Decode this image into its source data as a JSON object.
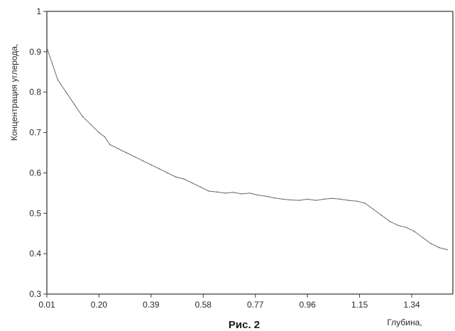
{
  "figure": {
    "caption": "Рис. 2"
  },
  "chart_data": {
    "type": "line",
    "title": "",
    "ylabel": "Концентрация углерода,",
    "xlabel": "Глубина,",
    "xlim": [
      0.01,
      1.49
    ],
    "ylim": [
      0.3,
      1.0
    ],
    "x_tick_labels": [
      "0.01",
      "0.20",
      "0.39",
      "0.58",
      "0.77",
      "0.96",
      "1.15",
      "1.34"
    ],
    "x_tick_values": [
      0.01,
      0.2,
      0.39,
      0.58,
      0.77,
      0.96,
      1.15,
      1.34
    ],
    "y_tick_labels": [
      "0.3",
      "0.4",
      "0.5",
      "0.6",
      "0.7",
      "0.8",
      "0.9",
      "1"
    ],
    "y_tick_values": [
      0.3,
      0.4,
      0.5,
      0.6,
      0.7,
      0.8,
      0.9,
      1.0
    ],
    "grid": false,
    "legend": false,
    "series": [
      {
        "color": "#6a6a6a",
        "x": [
          0.01,
          0.03,
          0.05,
          0.08,
          0.11,
          0.14,
          0.17,
          0.2,
          0.22,
          0.24,
          0.27,
          0.3,
          0.33,
          0.36,
          0.39,
          0.42,
          0.45,
          0.48,
          0.51,
          0.54,
          0.57,
          0.6,
          0.63,
          0.66,
          0.69,
          0.72,
          0.75,
          0.78,
          0.81,
          0.84,
          0.87,
          0.9,
          0.93,
          0.96,
          0.99,
          1.02,
          1.05,
          1.08,
          1.11,
          1.14,
          1.17,
          1.2,
          1.23,
          1.26,
          1.29,
          1.32,
          1.35,
          1.38,
          1.41,
          1.44,
          1.47
        ],
        "y": [
          0.91,
          0.87,
          0.83,
          0.8,
          0.77,
          0.74,
          0.72,
          0.7,
          0.69,
          0.67,
          0.66,
          0.65,
          0.64,
          0.63,
          0.62,
          0.61,
          0.6,
          0.59,
          0.585,
          0.575,
          0.565,
          0.555,
          0.553,
          0.55,
          0.552,
          0.548,
          0.55,
          0.545,
          0.542,
          0.538,
          0.535,
          0.533,
          0.532,
          0.535,
          0.532,
          0.535,
          0.537,
          0.535,
          0.532,
          0.53,
          0.525,
          0.51,
          0.495,
          0.48,
          0.47,
          0.465,
          0.455,
          0.44,
          0.425,
          0.415,
          0.41
        ]
      }
    ]
  }
}
